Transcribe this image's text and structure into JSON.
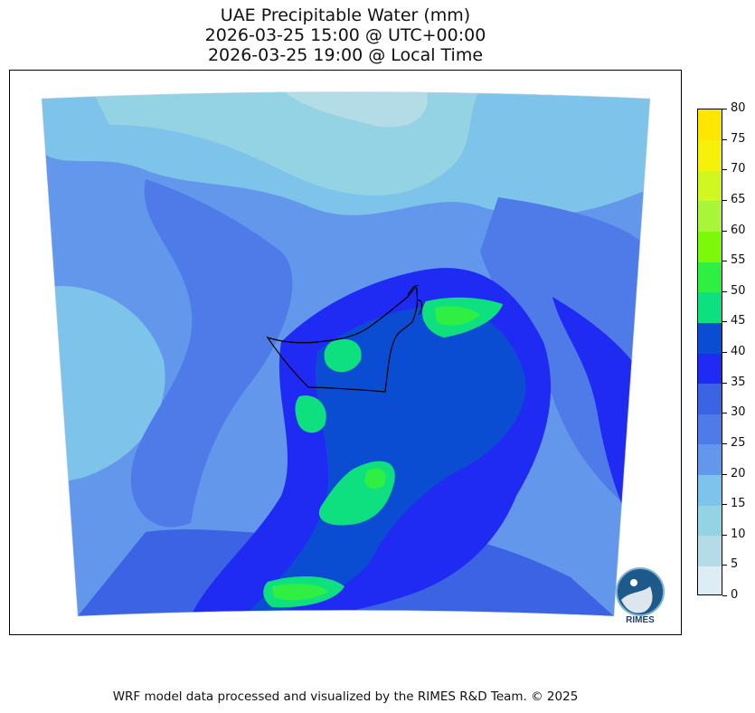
{
  "title": {
    "line1": "UAE Precipitable Water (mm)",
    "line2": "2026-03-25 15:00 @ UTC+00:00",
    "line3": "2026-03-25 19:00 @ Local Time"
  },
  "colorbar": {
    "levels": [
      "0",
      "5",
      "10",
      "15",
      "20",
      "25",
      "30",
      "35",
      "40",
      "45",
      "50",
      "55",
      "60",
      "65",
      "70",
      "75",
      "80"
    ],
    "colors": [
      "#dcedf4",
      "#b3dce6",
      "#93d3e4",
      "#7dc3ea",
      "#6397ec",
      "#4e7be8",
      "#3b63e3",
      "#1f2bf2",
      "#0b4dd2",
      "#0ee07f",
      "#2fef42",
      "#7df70a",
      "#a8f53a",
      "#d0f820",
      "#f4f20a",
      "#fde600",
      "#fdcb00"
    ]
  },
  "logo": {
    "text": "RIMES"
  },
  "footer": {
    "text": "WRF model data processed and visualized by the RIMES R&D Team. © 2025"
  }
}
